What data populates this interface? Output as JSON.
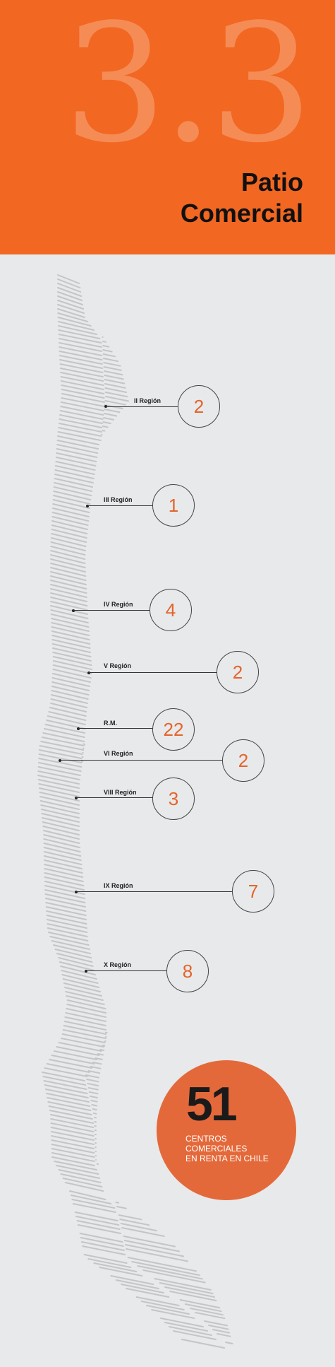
{
  "header": {
    "section_number": "3.3",
    "title_line1": "Patio",
    "title_line2": "Comercial"
  },
  "regions": [
    {
      "label": "II Región",
      "count": "2"
    },
    {
      "label": "III Región",
      "count": "1"
    },
    {
      "label": "IV Región",
      "count": "4"
    },
    {
      "label": "V Región",
      "count": "2"
    },
    {
      "label": "R.M.",
      "count": "22"
    },
    {
      "label": "VI Región",
      "count": "2"
    },
    {
      "label": "VIII Región",
      "count": "3"
    },
    {
      "label": "IX Región",
      "count": "7"
    },
    {
      "label": "X Región",
      "count": "8"
    }
  ],
  "total": {
    "number": "51",
    "line1": "CENTROS",
    "line2": "COMERCIALES",
    "line3": "EN RENTA EN CHILE"
  },
  "colors": {
    "header_bg": "#f26722",
    "accent": "#e4642a",
    "map_stripes": "#c4c5c7"
  }
}
